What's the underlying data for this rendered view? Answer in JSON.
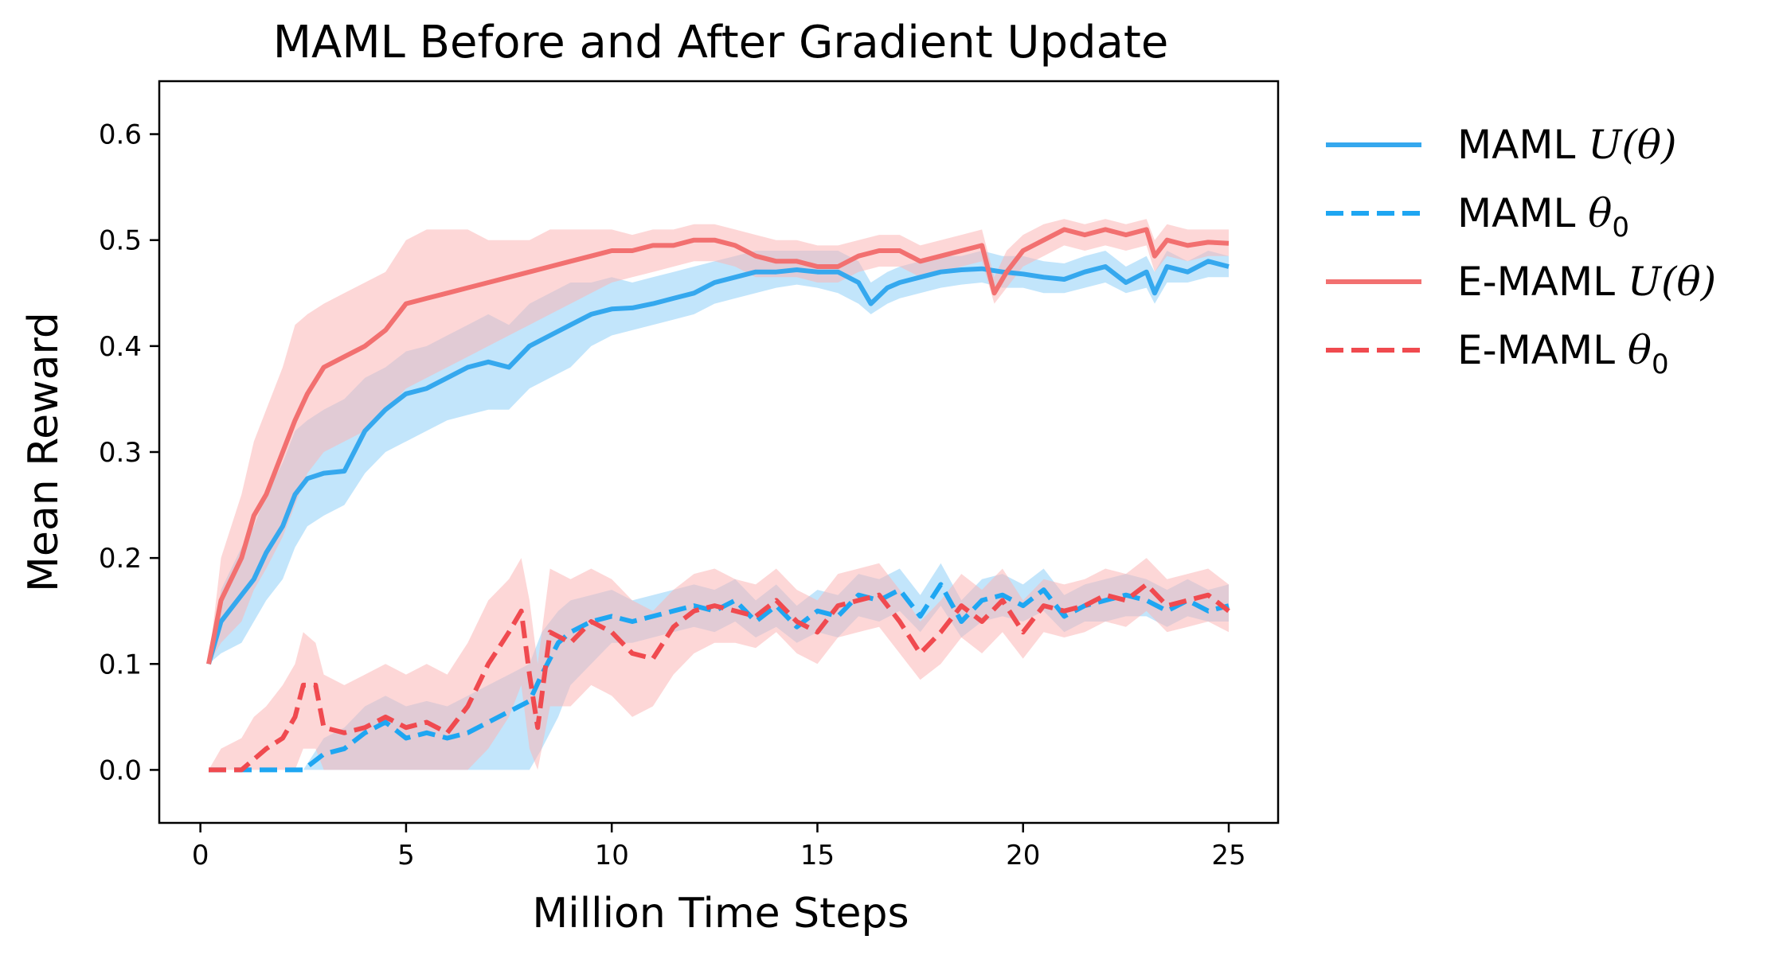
{
  "chart_data": {
    "type": "line",
    "title": "MAML Before and After Gradient Update",
    "xlabel": "Million Time Steps",
    "ylabel": "Mean Reward",
    "xlim": [
      -1,
      26.2
    ],
    "ylim": [
      -0.05,
      0.65
    ],
    "xticks": [
      "0",
      "5",
      "10",
      "15",
      "20",
      "25"
    ],
    "xtick_values": [
      0,
      5,
      10,
      15,
      20,
      25
    ],
    "yticks": [
      "0.0",
      "0.1",
      "0.2",
      "0.3",
      "0.4",
      "0.5",
      "0.6"
    ],
    "ytick_values": [
      0,
      0.1,
      0.2,
      0.3,
      0.4,
      0.5,
      0.6
    ],
    "grid": false,
    "legend_position": "outside-right",
    "series": [
      {
        "name": "MAML U(θ)",
        "legend_text": "MAML ",
        "legend_math": "U(θ)",
        "color": "#35a8ee",
        "band_color": "#8fd0f7",
        "dash": "solid",
        "x": [
          0.2,
          0.5,
          1.0,
          1.3,
          1.6,
          2.0,
          2.3,
          2.6,
          3.0,
          3.5,
          4.0,
          4.5,
          5.0,
          5.5,
          6.0,
          6.5,
          7.0,
          7.5,
          8.0,
          8.5,
          9.0,
          9.5,
          10.0,
          10.5,
          11.0,
          11.5,
          12.0,
          12.5,
          13.0,
          13.5,
          14.0,
          14.5,
          15.0,
          15.5,
          16.0,
          16.3,
          16.7,
          17.0,
          17.5,
          18.0,
          18.5,
          19.0,
          19.5,
          20.0,
          20.5,
          21.0,
          21.5,
          22.0,
          22.5,
          23.0,
          23.2,
          23.5,
          24.0,
          24.5,
          25.0
        ],
        "y": [
          0.1,
          0.14,
          0.165,
          0.18,
          0.205,
          0.23,
          0.26,
          0.275,
          0.28,
          0.282,
          0.32,
          0.34,
          0.355,
          0.36,
          0.37,
          0.38,
          0.385,
          0.38,
          0.4,
          0.41,
          0.42,
          0.43,
          0.435,
          0.436,
          0.44,
          0.445,
          0.45,
          0.46,
          0.465,
          0.47,
          0.47,
          0.472,
          0.47,
          0.47,
          0.46,
          0.44,
          0.455,
          0.46,
          0.465,
          0.47,
          0.472,
          0.473,
          0.47,
          0.468,
          0.465,
          0.463,
          0.47,
          0.475,
          0.46,
          0.47,
          0.45,
          0.475,
          0.47,
          0.48,
          0.475
        ],
        "lower": [
          0.1,
          0.11,
          0.12,
          0.14,
          0.16,
          0.18,
          0.21,
          0.23,
          0.24,
          0.25,
          0.28,
          0.3,
          0.31,
          0.32,
          0.33,
          0.335,
          0.34,
          0.34,
          0.36,
          0.37,
          0.38,
          0.4,
          0.41,
          0.415,
          0.42,
          0.425,
          0.43,
          0.44,
          0.445,
          0.45,
          0.455,
          0.458,
          0.455,
          0.45,
          0.44,
          0.43,
          0.44,
          0.445,
          0.45,
          0.455,
          0.458,
          0.46,
          0.455,
          0.455,
          0.45,
          0.45,
          0.455,
          0.46,
          0.45,
          0.455,
          0.44,
          0.46,
          0.46,
          0.465,
          0.465
        ],
        "upper": [
          0.1,
          0.17,
          0.21,
          0.23,
          0.26,
          0.29,
          0.32,
          0.33,
          0.34,
          0.35,
          0.37,
          0.38,
          0.395,
          0.4,
          0.41,
          0.42,
          0.43,
          0.42,
          0.44,
          0.45,
          0.46,
          0.46,
          0.465,
          0.46,
          0.465,
          0.47,
          0.475,
          0.48,
          0.485,
          0.49,
          0.49,
          0.49,
          0.49,
          0.49,
          0.48,
          0.46,
          0.47,
          0.475,
          0.48,
          0.485,
          0.485,
          0.49,
          0.485,
          0.485,
          0.48,
          0.478,
          0.485,
          0.49,
          0.475,
          0.485,
          0.47,
          0.49,
          0.48,
          0.49,
          0.485
        ]
      },
      {
        "name": "MAML θ0",
        "legend_text": "MAML ",
        "legend_math": "θ",
        "legend_sub": "0",
        "color": "#1ea6f2",
        "band_color": "#8fd0f7",
        "dash": "dashed",
        "x": [
          0.2,
          0.5,
          1.0,
          1.5,
          2.0,
          2.5,
          3.0,
          3.5,
          4.0,
          4.5,
          5.0,
          5.5,
          6.0,
          6.5,
          7.0,
          7.5,
          8.0,
          8.3,
          8.7,
          9.0,
          9.5,
          10.0,
          10.5,
          11.0,
          11.5,
          12.0,
          12.5,
          13.0,
          13.5,
          14.0,
          14.5,
          15.0,
          15.5,
          16.0,
          16.5,
          17.0,
          17.5,
          18.0,
          18.5,
          19.0,
          19.5,
          20.0,
          20.5,
          21.0,
          21.5,
          22.0,
          22.5,
          23.0,
          23.5,
          24.0,
          24.5,
          25.0
        ],
        "y": [
          0.0,
          0.0,
          0.0,
          0.0,
          0.0,
          0.0,
          0.015,
          0.02,
          0.035,
          0.045,
          0.03,
          0.035,
          0.03,
          0.035,
          0.045,
          0.055,
          0.065,
          0.09,
          0.12,
          0.13,
          0.14,
          0.145,
          0.14,
          0.145,
          0.15,
          0.155,
          0.15,
          0.16,
          0.14,
          0.155,
          0.135,
          0.15,
          0.145,
          0.165,
          0.16,
          0.17,
          0.145,
          0.175,
          0.14,
          0.16,
          0.165,
          0.155,
          0.17,
          0.145,
          0.155,
          0.16,
          0.165,
          0.16,
          0.15,
          0.16,
          0.15,
          0.155
        ],
        "lower": [
          0.0,
          0.0,
          0.0,
          0.0,
          0.0,
          0.0,
          0.0,
          0.0,
          0.0,
          0.0,
          0.0,
          0.0,
          0.0,
          0.0,
          0.0,
          0.0,
          0.0,
          0.02,
          0.05,
          0.08,
          0.1,
          0.12,
          0.12,
          0.125,
          0.13,
          0.135,
          0.13,
          0.14,
          0.125,
          0.135,
          0.12,
          0.13,
          0.125,
          0.145,
          0.14,
          0.15,
          0.13,
          0.155,
          0.125,
          0.14,
          0.145,
          0.14,
          0.15,
          0.13,
          0.14,
          0.14,
          0.145,
          0.145,
          0.135,
          0.145,
          0.14,
          0.14
        ],
        "upper": [
          0.0,
          0.0,
          0.0,
          0.0,
          0.0,
          0.0,
          0.03,
          0.04,
          0.06,
          0.07,
          0.06,
          0.065,
          0.06,
          0.07,
          0.08,
          0.09,
          0.1,
          0.13,
          0.15,
          0.16,
          0.165,
          0.17,
          0.16,
          0.165,
          0.17,
          0.175,
          0.17,
          0.18,
          0.16,
          0.175,
          0.155,
          0.17,
          0.165,
          0.185,
          0.18,
          0.19,
          0.165,
          0.195,
          0.16,
          0.18,
          0.185,
          0.175,
          0.19,
          0.165,
          0.175,
          0.18,
          0.185,
          0.18,
          0.17,
          0.18,
          0.17,
          0.175
        ]
      },
      {
        "name": "E-MAML U(θ)",
        "legend_text": "E-MAML ",
        "legend_math": "U(θ)",
        "color": "#f27070",
        "band_color": "#fbb6b6",
        "dash": "solid",
        "x": [
          0.2,
          0.5,
          1.0,
          1.3,
          1.6,
          2.0,
          2.3,
          2.6,
          3.0,
          3.5,
          4.0,
          4.5,
          5.0,
          5.5,
          6.0,
          6.5,
          7.0,
          7.5,
          8.0,
          8.5,
          9.0,
          9.5,
          10.0,
          10.5,
          11.0,
          11.5,
          12.0,
          12.5,
          13.0,
          13.5,
          14.0,
          14.5,
          15.0,
          15.5,
          16.0,
          16.5,
          17.0,
          17.5,
          18.0,
          18.5,
          19.0,
          19.3,
          19.6,
          20.0,
          20.5,
          21.0,
          21.5,
          22.0,
          22.5,
          23.0,
          23.2,
          23.5,
          24.0,
          24.5,
          25.0
        ],
        "y": [
          0.1,
          0.16,
          0.2,
          0.24,
          0.26,
          0.3,
          0.33,
          0.355,
          0.38,
          0.39,
          0.4,
          0.415,
          0.44,
          0.445,
          0.45,
          0.455,
          0.46,
          0.465,
          0.47,
          0.475,
          0.48,
          0.485,
          0.49,
          0.49,
          0.495,
          0.495,
          0.5,
          0.5,
          0.495,
          0.485,
          0.48,
          0.48,
          0.475,
          0.475,
          0.485,
          0.49,
          0.49,
          0.48,
          0.485,
          0.49,
          0.495,
          0.45,
          0.47,
          0.49,
          0.5,
          0.51,
          0.505,
          0.51,
          0.505,
          0.51,
          0.485,
          0.5,
          0.495,
          0.498,
          0.497
        ],
        "lower": [
          0.1,
          0.12,
          0.14,
          0.17,
          0.19,
          0.22,
          0.25,
          0.28,
          0.3,
          0.31,
          0.32,
          0.34,
          0.36,
          0.37,
          0.38,
          0.39,
          0.4,
          0.41,
          0.42,
          0.43,
          0.44,
          0.45,
          0.46,
          0.465,
          0.47,
          0.475,
          0.48,
          0.48,
          0.475,
          0.465,
          0.465,
          0.465,
          0.46,
          0.46,
          0.47,
          0.475,
          0.475,
          0.465,
          0.47,
          0.475,
          0.48,
          0.44,
          0.455,
          0.475,
          0.485,
          0.495,
          0.49,
          0.495,
          0.49,
          0.495,
          0.47,
          0.485,
          0.48,
          0.485,
          0.485
        ],
        "upper": [
          0.1,
          0.2,
          0.26,
          0.31,
          0.34,
          0.38,
          0.42,
          0.43,
          0.44,
          0.45,
          0.46,
          0.47,
          0.5,
          0.51,
          0.51,
          0.51,
          0.5,
          0.5,
          0.5,
          0.51,
          0.51,
          0.51,
          0.51,
          0.505,
          0.51,
          0.51,
          0.515,
          0.515,
          0.51,
          0.505,
          0.5,
          0.5,
          0.495,
          0.495,
          0.5,
          0.505,
          0.505,
          0.495,
          0.5,
          0.505,
          0.51,
          0.465,
          0.49,
          0.505,
          0.515,
          0.52,
          0.515,
          0.52,
          0.515,
          0.52,
          0.5,
          0.515,
          0.51,
          0.51,
          0.51
        ]
      },
      {
        "name": "E-MAML θ0",
        "legend_text": "E-MAML ",
        "legend_math": "θ",
        "legend_sub": "0",
        "color": "#f04a4f",
        "band_color": "#fbb6b6",
        "dash": "dashed",
        "x": [
          0.2,
          0.5,
          1.0,
          1.3,
          1.6,
          2.0,
          2.3,
          2.5,
          2.8,
          3.0,
          3.5,
          4.0,
          4.5,
          5.0,
          5.5,
          6.0,
          6.5,
          7.0,
          7.5,
          7.8,
          8.0,
          8.2,
          8.5,
          9.0,
          9.5,
          10.0,
          10.5,
          11.0,
          11.5,
          12.0,
          12.5,
          13.0,
          13.5,
          14.0,
          14.5,
          15.0,
          15.5,
          16.0,
          16.5,
          17.0,
          17.5,
          18.0,
          18.5,
          19.0,
          19.5,
          20.0,
          20.5,
          21.0,
          21.5,
          22.0,
          22.5,
          23.0,
          23.5,
          24.0,
          24.5,
          25.0
        ],
        "y": [
          0.0,
          0.0,
          0.0,
          0.01,
          0.02,
          0.03,
          0.05,
          0.08,
          0.08,
          0.04,
          0.035,
          0.04,
          0.05,
          0.04,
          0.045,
          0.035,
          0.06,
          0.1,
          0.13,
          0.15,
          0.09,
          0.04,
          0.13,
          0.12,
          0.14,
          0.13,
          0.11,
          0.105,
          0.135,
          0.15,
          0.155,
          0.15,
          0.145,
          0.16,
          0.14,
          0.13,
          0.155,
          0.16,
          0.165,
          0.14,
          0.11,
          0.13,
          0.155,
          0.14,
          0.16,
          0.13,
          0.155,
          0.15,
          0.155,
          0.165,
          0.16,
          0.175,
          0.155,
          0.16,
          0.165,
          0.15
        ],
        "lower": [
          0.0,
          0.0,
          0.0,
          0.0,
          0.0,
          0.0,
          0.0,
          0.02,
          0.02,
          0.0,
          0.0,
          0.0,
          0.0,
          0.0,
          0.0,
          0.0,
          0.0,
          0.02,
          0.05,
          0.08,
          0.02,
          0.0,
          0.06,
          0.06,
          0.08,
          0.07,
          0.05,
          0.06,
          0.09,
          0.11,
          0.12,
          0.12,
          0.115,
          0.13,
          0.11,
          0.1,
          0.125,
          0.13,
          0.135,
          0.11,
          0.085,
          0.1,
          0.125,
          0.11,
          0.13,
          0.105,
          0.13,
          0.125,
          0.13,
          0.14,
          0.135,
          0.15,
          0.13,
          0.135,
          0.14,
          0.13
        ],
        "upper": [
          0.0,
          0.02,
          0.03,
          0.05,
          0.06,
          0.08,
          0.1,
          0.13,
          0.12,
          0.09,
          0.08,
          0.09,
          0.1,
          0.09,
          0.1,
          0.09,
          0.12,
          0.16,
          0.18,
          0.2,
          0.16,
          0.1,
          0.19,
          0.18,
          0.19,
          0.18,
          0.16,
          0.15,
          0.17,
          0.185,
          0.19,
          0.18,
          0.175,
          0.19,
          0.17,
          0.16,
          0.185,
          0.19,
          0.195,
          0.17,
          0.14,
          0.16,
          0.185,
          0.17,
          0.19,
          0.16,
          0.18,
          0.175,
          0.18,
          0.19,
          0.185,
          0.2,
          0.18,
          0.185,
          0.19,
          0.175
        ]
      }
    ]
  }
}
